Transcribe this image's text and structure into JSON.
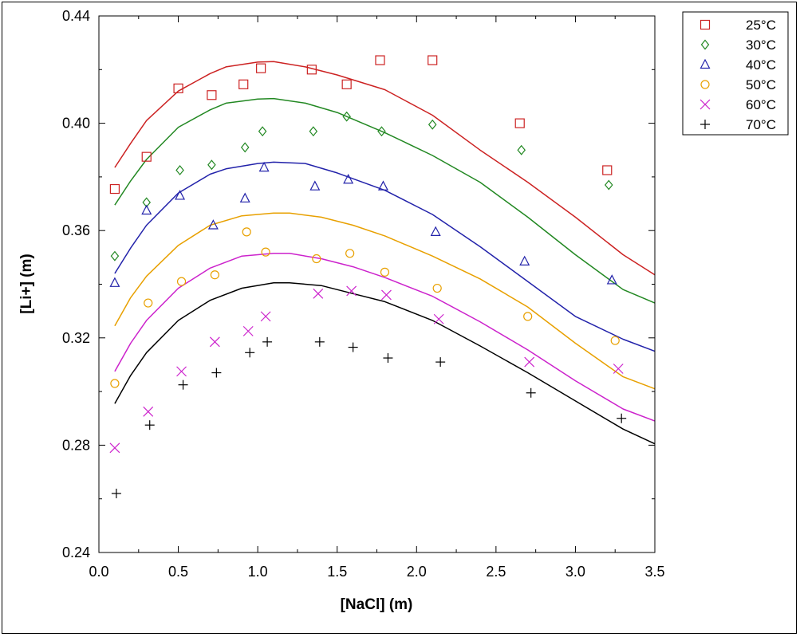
{
  "chart_data": {
    "type": "scatter",
    "xlabel": "[NaCl] (m)",
    "ylabel": "[Li+] (m)",
    "xlim": [
      0,
      3.5
    ],
    "ylim": [
      0.24,
      0.44
    ],
    "x_ticks": [
      0,
      0.5,
      1,
      1.5,
      2,
      2.5,
      3,
      3.5
    ],
    "x_tick_labels": [
      "0.0",
      "0.5",
      "1.0",
      "1.5",
      "2.0",
      "2.5",
      "3.0",
      "3.5"
    ],
    "y_ticks": [
      0.24,
      0.28,
      0.32,
      0.36,
      0.4,
      0.44
    ],
    "y_tick_labels": [
      "0.24",
      "0.28",
      "0.32",
      "0.36",
      "0.40",
      "0.44"
    ],
    "grid": false,
    "legend_position": "top-right outside",
    "series": [
      {
        "name": "25°C",
        "marker": "square",
        "color": "#cc2222",
        "points": [
          [
            0.1,
            0.3755
          ],
          [
            0.3,
            0.3875
          ],
          [
            0.5,
            0.413
          ],
          [
            0.71,
            0.4105
          ],
          [
            0.91,
            0.4145
          ],
          [
            1.02,
            0.4205
          ],
          [
            1.34,
            0.42
          ],
          [
            1.56,
            0.4145
          ],
          [
            1.77,
            0.4235
          ],
          [
            2.1,
            0.4235
          ],
          [
            2.65,
            0.4
          ],
          [
            3.2,
            0.3825
          ]
        ],
        "curve": [
          [
            0.1,
            0.3835
          ],
          [
            0.2,
            0.3925
          ],
          [
            0.3,
            0.401
          ],
          [
            0.5,
            0.412
          ],
          [
            0.7,
            0.4185
          ],
          [
            0.8,
            0.421
          ],
          [
            1.0,
            0.4228
          ],
          [
            1.1,
            0.423
          ],
          [
            1.3,
            0.421
          ],
          [
            1.5,
            0.418
          ],
          [
            1.8,
            0.4125
          ],
          [
            2.1,
            0.403
          ],
          [
            2.4,
            0.39
          ],
          [
            2.7,
            0.378
          ],
          [
            3.0,
            0.365
          ],
          [
            3.3,
            0.351
          ],
          [
            3.5,
            0.3435
          ]
        ]
      },
      {
        "name": "30°C",
        "marker": "diamond",
        "color": "#228822",
        "points": [
          [
            0.1,
            0.3505
          ],
          [
            0.3,
            0.3705
          ],
          [
            0.51,
            0.3825
          ],
          [
            0.71,
            0.3845
          ],
          [
            0.92,
            0.391
          ],
          [
            1.03,
            0.397
          ],
          [
            1.35,
            0.397
          ],
          [
            1.56,
            0.4025
          ],
          [
            1.78,
            0.397
          ],
          [
            2.1,
            0.3995
          ],
          [
            2.66,
            0.39
          ],
          [
            3.21,
            0.377
          ]
        ],
        "curve": [
          [
            0.1,
            0.3695
          ],
          [
            0.2,
            0.3785
          ],
          [
            0.3,
            0.3865
          ],
          [
            0.5,
            0.3985
          ],
          [
            0.7,
            0.405
          ],
          [
            0.8,
            0.4075
          ],
          [
            1.0,
            0.409
          ],
          [
            1.1,
            0.4092
          ],
          [
            1.3,
            0.4075
          ],
          [
            1.5,
            0.404
          ],
          [
            1.8,
            0.3965
          ],
          [
            2.1,
            0.388
          ],
          [
            2.4,
            0.378
          ],
          [
            2.7,
            0.365
          ],
          [
            3.0,
            0.351
          ],
          [
            3.3,
            0.338
          ],
          [
            3.5,
            0.333
          ]
        ]
      },
      {
        "name": "40°C",
        "marker": "triangle",
        "color": "#2222aa",
        "points": [
          [
            0.1,
            0.3405
          ],
          [
            0.3,
            0.3675
          ],
          [
            0.51,
            0.373
          ],
          [
            0.72,
            0.362
          ],
          [
            0.92,
            0.372
          ],
          [
            1.04,
            0.3835
          ],
          [
            1.36,
            0.3765
          ],
          [
            1.57,
            0.379
          ],
          [
            1.79,
            0.3765
          ],
          [
            2.12,
            0.3595
          ],
          [
            2.68,
            0.3485
          ],
          [
            3.23,
            0.3415
          ]
        ],
        "curve": [
          [
            0.1,
            0.344
          ],
          [
            0.2,
            0.3535
          ],
          [
            0.3,
            0.362
          ],
          [
            0.5,
            0.374
          ],
          [
            0.7,
            0.381
          ],
          [
            0.8,
            0.383
          ],
          [
            1.0,
            0.385
          ],
          [
            1.1,
            0.3855
          ],
          [
            1.3,
            0.385
          ],
          [
            1.5,
            0.3815
          ],
          [
            1.8,
            0.375
          ],
          [
            2.1,
            0.366
          ],
          [
            2.4,
            0.354
          ],
          [
            2.7,
            0.341
          ],
          [
            3.0,
            0.328
          ],
          [
            3.3,
            0.3195
          ],
          [
            3.5,
            0.315
          ]
        ]
      },
      {
        "name": "50°C",
        "marker": "circle",
        "color": "#e8a000",
        "points": [
          [
            0.1,
            0.303
          ],
          [
            0.31,
            0.333
          ],
          [
            0.52,
            0.341
          ],
          [
            0.73,
            0.3435
          ],
          [
            0.93,
            0.3595
          ],
          [
            1.05,
            0.352
          ],
          [
            1.37,
            0.3495
          ],
          [
            1.58,
            0.3515
          ],
          [
            1.8,
            0.3445
          ],
          [
            2.13,
            0.3385
          ],
          [
            2.7,
            0.328
          ],
          [
            3.25,
            0.319
          ]
        ],
        "curve": [
          [
            0.1,
            0.3245
          ],
          [
            0.2,
            0.335
          ],
          [
            0.3,
            0.343
          ],
          [
            0.5,
            0.3545
          ],
          [
            0.7,
            0.362
          ],
          [
            0.9,
            0.3655
          ],
          [
            1.1,
            0.3665
          ],
          [
            1.2,
            0.3665
          ],
          [
            1.4,
            0.365
          ],
          [
            1.6,
            0.362
          ],
          [
            1.8,
            0.358
          ],
          [
            2.1,
            0.3505
          ],
          [
            2.4,
            0.342
          ],
          [
            2.7,
            0.3315
          ],
          [
            3.0,
            0.318
          ],
          [
            3.3,
            0.3055
          ],
          [
            3.5,
            0.301
          ]
        ]
      },
      {
        "name": "60°C",
        "marker": "x",
        "color": "#cc22cc",
        "points": [
          [
            0.1,
            0.279
          ],
          [
            0.31,
            0.2925
          ],
          [
            0.52,
            0.3075
          ],
          [
            0.73,
            0.3185
          ],
          [
            0.94,
            0.3225
          ],
          [
            1.05,
            0.328
          ],
          [
            1.38,
            0.3365
          ],
          [
            1.59,
            0.3375
          ],
          [
            1.81,
            0.336
          ],
          [
            2.14,
            0.327
          ],
          [
            2.71,
            0.311
          ],
          [
            3.27,
            0.3085
          ]
        ],
        "curve": [
          [
            0.1,
            0.3075
          ],
          [
            0.2,
            0.318
          ],
          [
            0.3,
            0.3265
          ],
          [
            0.5,
            0.3385
          ],
          [
            0.7,
            0.346
          ],
          [
            0.9,
            0.3505
          ],
          [
            1.1,
            0.3515
          ],
          [
            1.2,
            0.3515
          ],
          [
            1.4,
            0.3495
          ],
          [
            1.6,
            0.3465
          ],
          [
            1.8,
            0.3425
          ],
          [
            2.1,
            0.3355
          ],
          [
            2.4,
            0.326
          ],
          [
            2.7,
            0.3155
          ],
          [
            3.0,
            0.304
          ],
          [
            3.3,
            0.2935
          ],
          [
            3.5,
            0.289
          ]
        ]
      },
      {
        "name": "70°C",
        "marker": "plus",
        "color": "#000000",
        "points": [
          [
            0.11,
            0.262
          ],
          [
            0.32,
            0.2875
          ],
          [
            0.53,
            0.3025
          ],
          [
            0.74,
            0.307
          ],
          [
            0.95,
            0.3145
          ],
          [
            1.06,
            0.3185
          ],
          [
            1.39,
            0.3185
          ],
          [
            1.6,
            0.3165
          ],
          [
            1.82,
            0.3125
          ],
          [
            2.15,
            0.311
          ],
          [
            2.72,
            0.2995
          ],
          [
            3.29,
            0.29
          ]
        ],
        "curve": [
          [
            0.1,
            0.2955
          ],
          [
            0.2,
            0.306
          ],
          [
            0.3,
            0.3145
          ],
          [
            0.5,
            0.3265
          ],
          [
            0.7,
            0.334
          ],
          [
            0.9,
            0.3385
          ],
          [
            1.1,
            0.3405
          ],
          [
            1.2,
            0.3405
          ],
          [
            1.4,
            0.3395
          ],
          [
            1.6,
            0.3365
          ],
          [
            1.8,
            0.3335
          ],
          [
            2.1,
            0.3265
          ],
          [
            2.4,
            0.317
          ],
          [
            2.7,
            0.307
          ],
          [
            3.0,
            0.2965
          ],
          [
            3.3,
            0.286
          ],
          [
            3.5,
            0.2805
          ]
        ]
      }
    ]
  }
}
